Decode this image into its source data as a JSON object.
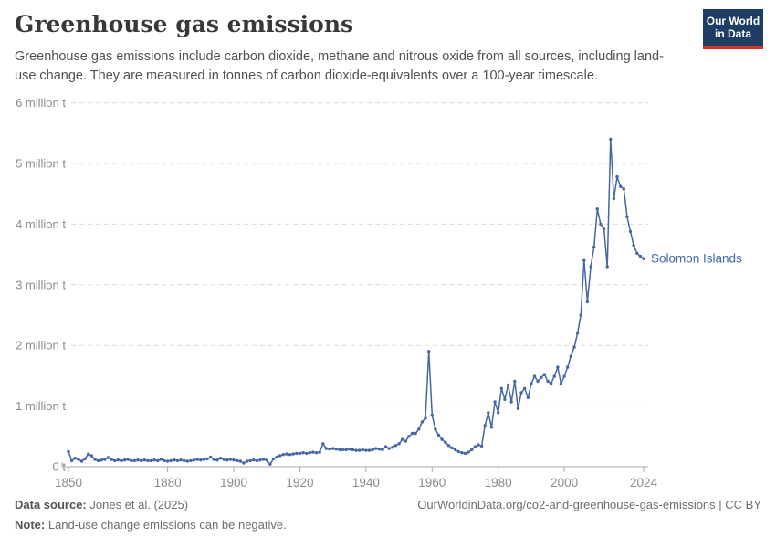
{
  "header": {
    "title": "Greenhouse gas emissions",
    "subtitle": "Greenhouse gas emissions include carbon dioxide, methane and nitrous oxide from all sources, including land-use change. They are measured in tonnes of carbon dioxide-equivalents over a 100-year timescale.",
    "logo": {
      "line1": "Our World",
      "line2": "in Data"
    }
  },
  "chart_data": {
    "type": "line",
    "title": "Greenhouse gas emissions",
    "entity_label": "Solomon Islands",
    "grid": true,
    "legend_position": "end-of-line",
    "x": {
      "start_year": 1850,
      "end_year": 2024,
      "ticks": [
        1850,
        1880,
        1900,
        1920,
        1940,
        1960,
        1980,
        2000,
        2024
      ]
    },
    "y": {
      "ticks": [
        0,
        1,
        2,
        3,
        4,
        5,
        6
      ],
      "unit_label": "million t",
      "zero_label": "0 t",
      "ylim": [
        0,
        6
      ]
    },
    "series": [
      {
        "name": "Solomon Islands",
        "start_year": 1850,
        "values": [
          0.25,
          0.1,
          0.14,
          0.12,
          0.09,
          0.13,
          0.21,
          0.18,
          0.12,
          0.1,
          0.11,
          0.12,
          0.15,
          0.12,
          0.1,
          0.11,
          0.1,
          0.11,
          0.12,
          0.1,
          0.1,
          0.11,
          0.1,
          0.11,
          0.1,
          0.1,
          0.11,
          0.1,
          0.12,
          0.1,
          0.09,
          0.1,
          0.11,
          0.1,
          0.11,
          0.1,
          0.09,
          0.1,
          0.11,
          0.12,
          0.11,
          0.12,
          0.13,
          0.16,
          0.12,
          0.11,
          0.14,
          0.12,
          0.11,
          0.12,
          0.11,
          0.1,
          0.09,
          0.06,
          0.09,
          0.1,
          0.11,
          0.1,
          0.11,
          0.12,
          0.11,
          0.04,
          0.13,
          0.16,
          0.18,
          0.2,
          0.21,
          0.2,
          0.21,
          0.22,
          0.22,
          0.23,
          0.22,
          0.23,
          0.24,
          0.23,
          0.24,
          0.38,
          0.3,
          0.29,
          0.3,
          0.29,
          0.28,
          0.28,
          0.28,
          0.29,
          0.28,
          0.27,
          0.27,
          0.28,
          0.27,
          0.27,
          0.28,
          0.3,
          0.29,
          0.28,
          0.33,
          0.3,
          0.32,
          0.35,
          0.38,
          0.45,
          0.42,
          0.5,
          0.55,
          0.55,
          0.62,
          0.74,
          0.8,
          1.9,
          0.85,
          0.62,
          0.52,
          0.45,
          0.4,
          0.35,
          0.31,
          0.28,
          0.25,
          0.23,
          0.22,
          0.24,
          0.28,
          0.33,
          0.36,
          0.34,
          0.68,
          0.89,
          0.65,
          1.07,
          0.89,
          1.29,
          1.11,
          1.35,
          1.07,
          1.41,
          0.96,
          1.22,
          1.29,
          1.14,
          1.37,
          1.49,
          1.41,
          1.47,
          1.52,
          1.41,
          1.37,
          1.49,
          1.64,
          1.37,
          1.49,
          1.64,
          1.82,
          1.97,
          2.2,
          2.5,
          3.4,
          2.72,
          3.3,
          3.62,
          4.25,
          4.0,
          3.92,
          3.3,
          5.4,
          4.42,
          4.78,
          4.62,
          4.58,
          4.12,
          3.88,
          3.65,
          3.52,
          3.47,
          3.43
        ]
      }
    ]
  },
  "footer": {
    "datasource_label": "Data source:",
    "datasource_value": "Jones et al. (2025)",
    "note_label": "Note:",
    "note_value": "Land-use change emissions can be negative.",
    "link": "OurWorldinData.org/co2-and-greenhouse-gas-emissions | CC BY"
  },
  "colors": {
    "line": "#4667a5",
    "end_label": "#4068ad",
    "grid": "#dcdcdc",
    "axis": "#a8a8a8",
    "tick_text": "#8b8b8b",
    "logo_bg": "#1d3d63",
    "logo_stripe": "#d7352b"
  }
}
